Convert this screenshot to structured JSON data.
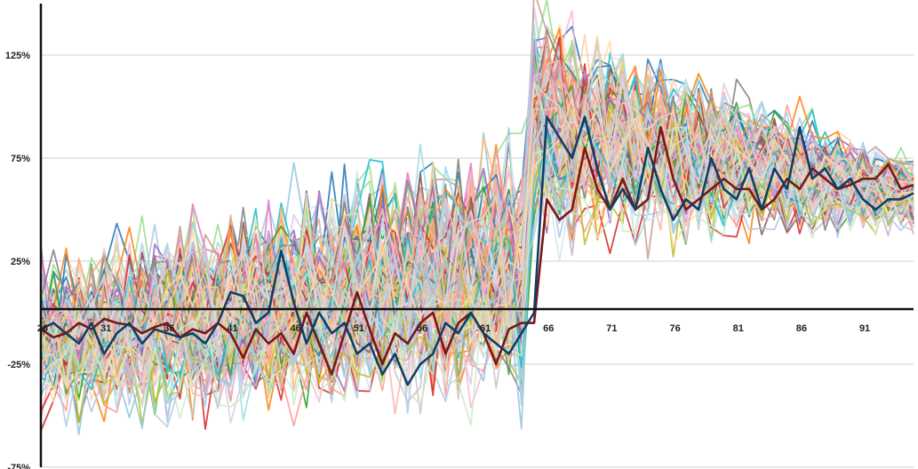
{
  "chart_data": {
    "type": "line",
    "title": "",
    "xlabel": "",
    "ylabel": "",
    "xlim": [
      26,
      95
    ],
    "ylim": [
      -75,
      150
    ],
    "y_ticks": [
      {
        "value": 125,
        "label": "125%"
      },
      {
        "value": 75,
        "label": "75%"
      },
      {
        "value": 25,
        "label": "25%"
      },
      {
        "value": -25,
        "label": "-25%"
      },
      {
        "value": -75,
        "label": "-75%"
      }
    ],
    "x_ticks": [
      {
        "value": 26,
        "label": "26"
      },
      {
        "value": 31,
        "label": "31"
      },
      {
        "value": 36,
        "label": "36"
      },
      {
        "value": 41,
        "label": "41"
      },
      {
        "value": 46,
        "label": "46"
      },
      {
        "value": 51,
        "label": "51"
      },
      {
        "value": 56,
        "label": "56"
      },
      {
        "value": 61,
        "label": "61"
      },
      {
        "value": 66,
        "label": "66"
      },
      {
        "value": 71,
        "label": "71"
      },
      {
        "value": 76,
        "label": "76"
      },
      {
        "value": 81,
        "label": "81"
      },
      {
        "value": 86,
        "label": "86"
      },
      {
        "value": 91,
        "label": "91"
      }
    ],
    "grid": true,
    "legend": "none",
    "background_series_count": 120,
    "background_palette": [
      "#1f77b4",
      "#aec7e8",
      "#ff7f0e",
      "#ffbb78",
      "#2ca02c",
      "#98df8a",
      "#d62728",
      "#ff9896",
      "#9467bd",
      "#c5b0d5",
      "#8c564b",
      "#c49c94",
      "#e377c2",
      "#f7b6d2",
      "#7f7f7f",
      "#c7c7c7",
      "#bcbd22",
      "#dbdb8d",
      "#17becf",
      "#9edae5",
      "#fdd0a2",
      "#f4a582",
      "#92c5de",
      "#d1e5f0",
      "#fbb4ae",
      "#b3cde3",
      "#ccebc5",
      "#decbe4",
      "#fed9a6",
      "#e5d8bd"
    ],
    "series": [
      {
        "color": "#7b1616",
        "x": [
          26,
          27,
          28,
          29,
          30,
          31,
          32,
          33,
          34,
          35,
          36,
          37,
          38,
          39,
          40,
          41,
          42,
          43,
          44,
          45,
          46,
          47,
          48,
          49,
          50,
          51,
          52,
          53,
          54,
          55,
          56,
          57,
          58,
          59,
          60,
          61,
          62,
          63,
          64,
          65,
          66,
          67,
          68,
          69,
          70,
          71,
          72,
          73,
          74,
          75,
          76,
          77,
          78,
          79,
          80,
          81,
          82,
          83,
          84,
          85,
          86,
          87,
          88,
          89,
          90,
          91,
          92,
          93,
          94,
          95
        ],
        "values": [
          -8,
          -12,
          -10,
          -5,
          -8,
          -3,
          -5,
          -6,
          -10,
          -7,
          -5,
          -12,
          -8,
          -10,
          -5,
          -10,
          -22,
          -8,
          -15,
          -10,
          -20,
          0,
          -15,
          -30,
          -10,
          10,
          -8,
          -25,
          -10,
          -15,
          -5,
          0,
          -20,
          -5,
          0,
          -10,
          -25,
          -8,
          -5,
          -5,
          55,
          45,
          50,
          80,
          60,
          50,
          65,
          50,
          55,
          90,
          65,
          50,
          55,
          60,
          65,
          60,
          60,
          50,
          55,
          65,
          60,
          70,
          65,
          60,
          62,
          65,
          65,
          72,
          60,
          62
        ]
      },
      {
        "color": "#0f3e66",
        "x": [
          26,
          27,
          28,
          29,
          30,
          31,
          32,
          33,
          34,
          35,
          36,
          37,
          38,
          39,
          40,
          41,
          42,
          43,
          44,
          45,
          46,
          47,
          48,
          49,
          50,
          51,
          52,
          53,
          54,
          55,
          56,
          57,
          58,
          59,
          60,
          61,
          62,
          63,
          64,
          65,
          66,
          67,
          68,
          69,
          70,
          71,
          72,
          73,
          74,
          75,
          76,
          77,
          78,
          79,
          80,
          81,
          82,
          83,
          84,
          85,
          86,
          87,
          88,
          89,
          90,
          91,
          92,
          93,
          94,
          95
        ],
        "values": [
          -8,
          -5,
          -10,
          -15,
          -5,
          -20,
          -10,
          -5,
          -15,
          -8,
          -10,
          -12,
          -10,
          -15,
          -5,
          10,
          8,
          -5,
          0,
          30,
          5,
          -15,
          0,
          -10,
          -5,
          -20,
          -15,
          -30,
          -20,
          -35,
          -25,
          -20,
          -5,
          -10,
          0,
          -10,
          -15,
          -20,
          -10,
          0,
          95,
          85,
          75,
          95,
          70,
          50,
          60,
          50,
          80,
          60,
          45,
          55,
          50,
          75,
          60,
          55,
          70,
          50,
          70,
          60,
          90,
          65,
          70,
          60,
          65,
          55,
          50,
          55,
          55,
          58
        ]
      }
    ]
  }
}
